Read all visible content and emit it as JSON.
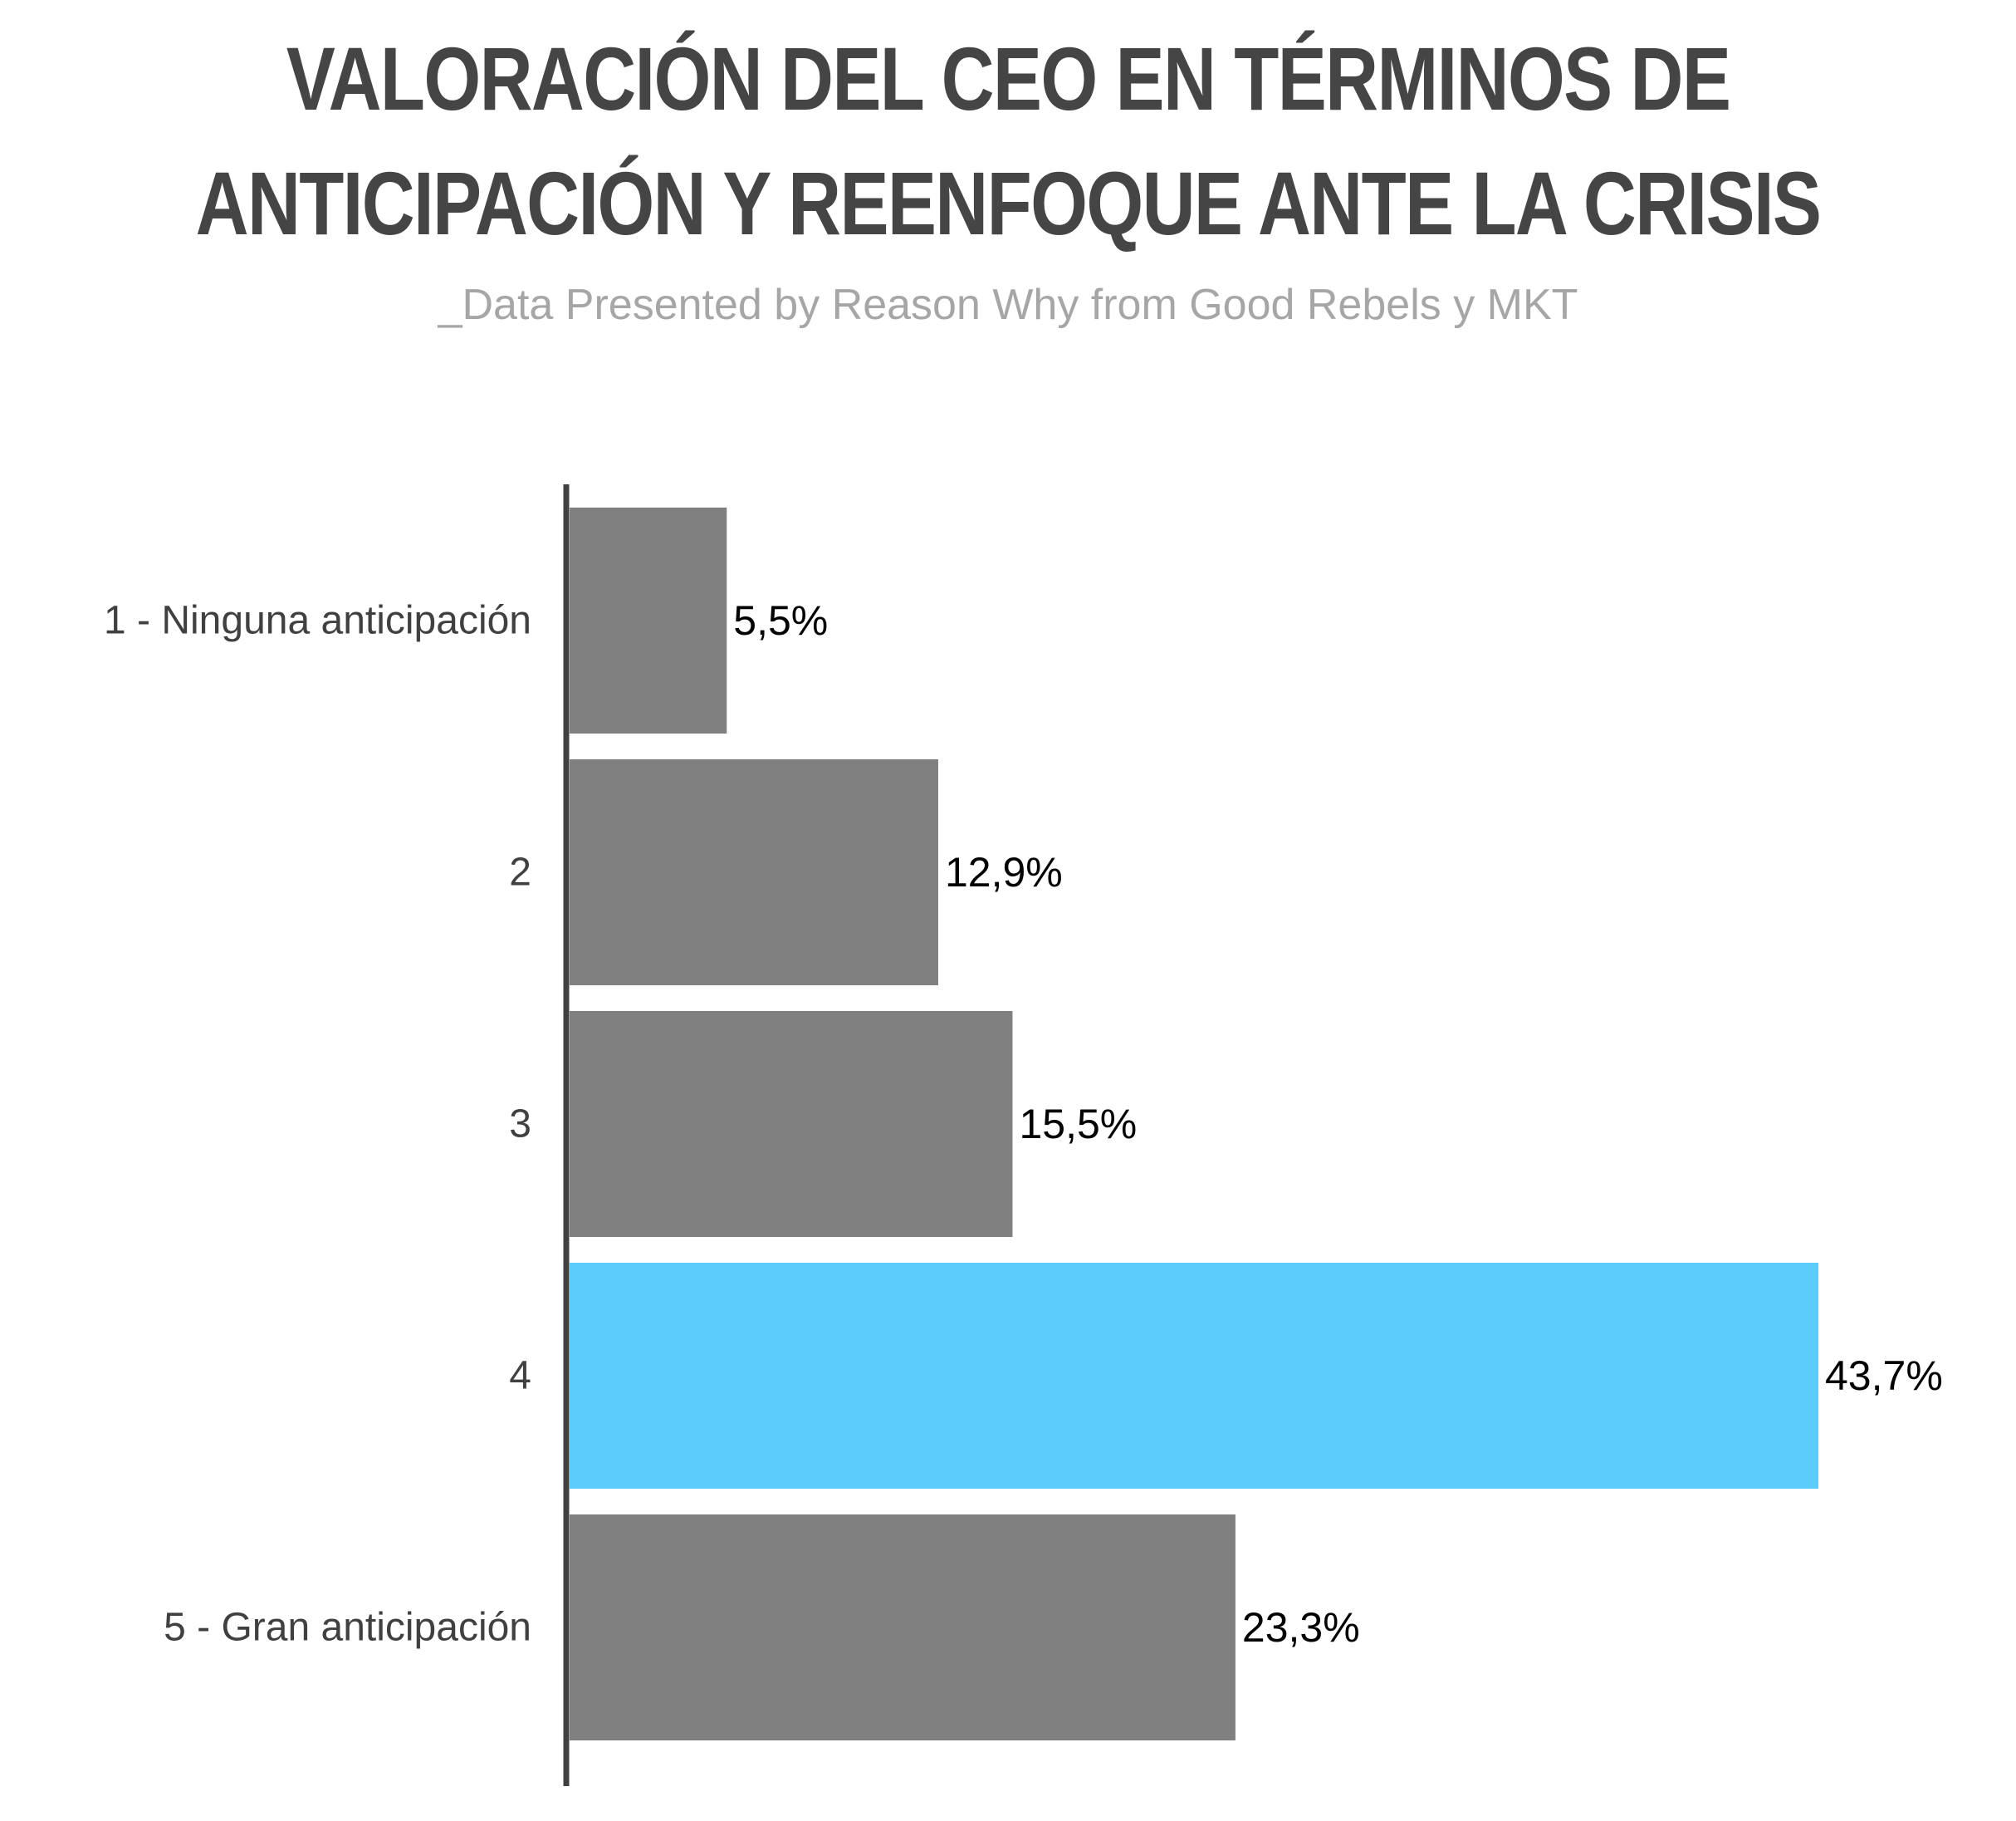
{
  "chart_data": {
    "type": "bar",
    "orientation": "horizontal",
    "title_lines": [
      "VALORACIÓN DEL CEO EN TÉRMINOS DE",
      "ANTICIPACIÓN Y REENFOQUE ANTE LA CRISIS"
    ],
    "subtitle": "_Data Presented by Reason Why from Good Rebels y MKT",
    "categories": [
      "1 - Ninguna anticipación",
      "2",
      "3",
      "4",
      "5 - Gran anticipación"
    ],
    "values": [
      5.5,
      12.9,
      15.5,
      43.7,
      23.3
    ],
    "value_labels": [
      "5,5%",
      "12,9%",
      "15,5%",
      "43,7%",
      "23,3%"
    ],
    "highlight_index": 3,
    "colors": {
      "bar": "#808080",
      "highlight": "#5bcbfc",
      "axis": "#404040",
      "title": "#454545",
      "subtitle": "#a6a6a6"
    },
    "xlim": [
      0,
      43.7
    ],
    "grid": false,
    "legend": "none"
  }
}
